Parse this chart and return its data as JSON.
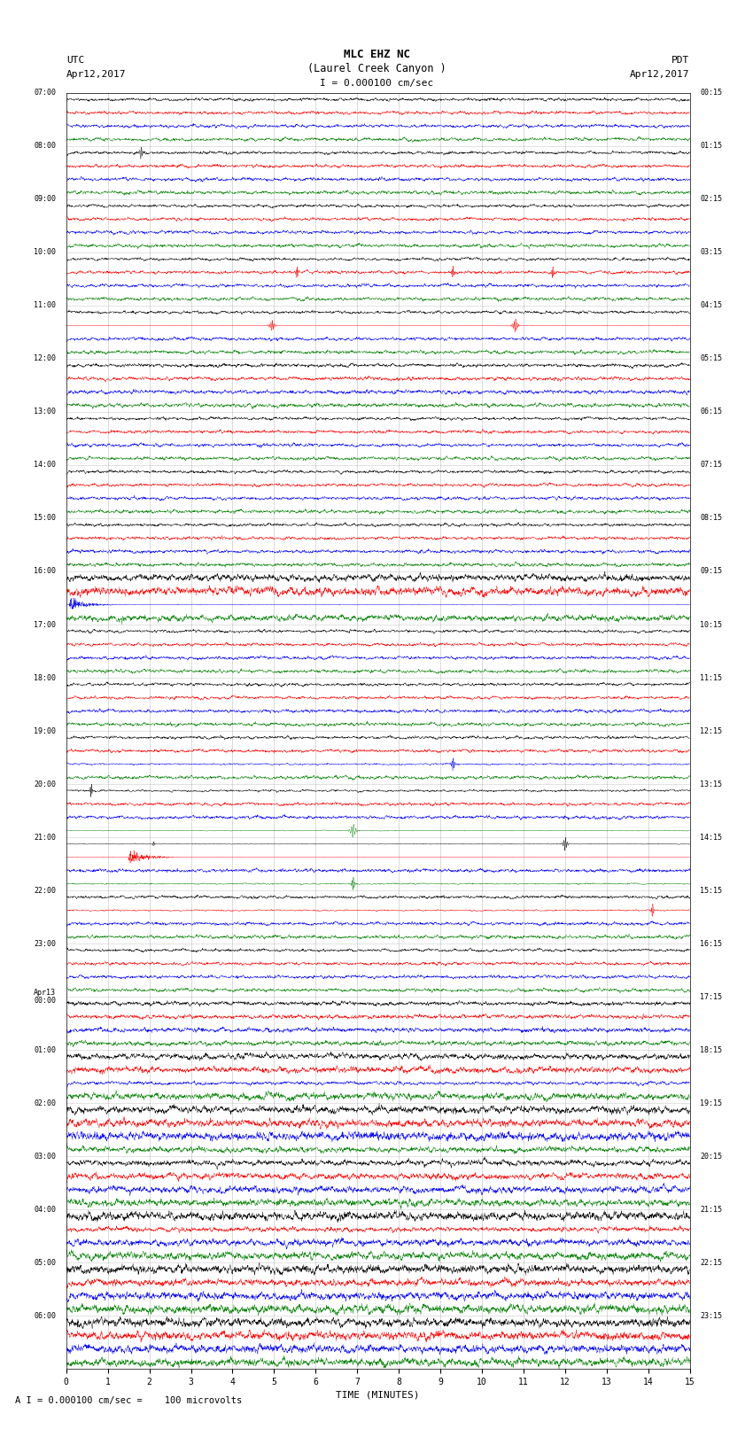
{
  "title_line1": "MLC EHZ NC",
  "title_line2": "(Laurel Creek Canyon )",
  "title_line3": "I = 0.000100 cm/sec",
  "left_label_top": "UTC",
  "left_label_date": "Apr12,2017",
  "right_label_top": "PDT",
  "right_label_date": "Apr12,2017",
  "xlabel": "TIME (MINUTES)",
  "footer": "A I = 0.000100 cm/sec =    100 microvolts",
  "bg_color": "#ffffff",
  "trace_colors": [
    "black",
    "red",
    "blue",
    "green"
  ],
  "utc_labels": [
    "07:00",
    "08:00",
    "09:00",
    "10:00",
    "11:00",
    "12:00",
    "13:00",
    "14:00",
    "15:00",
    "16:00",
    "17:00",
    "18:00",
    "19:00",
    "20:00",
    "21:00",
    "22:00",
    "23:00",
    "Apr13\n00:00",
    "01:00",
    "02:00",
    "03:00",
    "04:00",
    "05:00",
    "06:00"
  ],
  "pdt_labels": [
    "00:15",
    "01:15",
    "02:15",
    "03:15",
    "04:15",
    "05:15",
    "06:15",
    "07:15",
    "08:15",
    "09:15",
    "10:15",
    "11:15",
    "12:15",
    "13:15",
    "14:15",
    "15:15",
    "16:15",
    "17:15",
    "18:15",
    "19:15",
    "20:15",
    "21:15",
    "22:15",
    "23:15"
  ],
  "n_rows": 24,
  "n_traces_per_row": 4,
  "minutes": 15,
  "amp_profile": [
    0.06,
    0.06,
    0.06,
    0.06,
    0.06,
    0.07,
    0.06,
    0.06,
    0.06,
    0.2,
    0.06,
    0.06,
    0.06,
    0.06,
    0.06,
    0.06,
    0.06,
    0.08,
    0.12,
    0.15,
    0.18,
    0.22,
    0.25,
    0.28
  ]
}
